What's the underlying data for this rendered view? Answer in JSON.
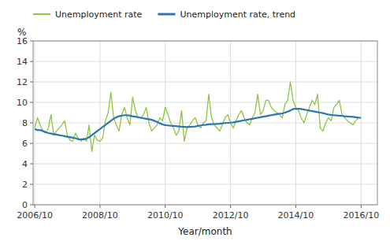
{
  "chart_data": {
    "type": "line",
    "xlabel": "Year/month",
    "ylabel": "%",
    "xlim": [
      2006.7,
      2017.25
    ],
    "xticks": [
      {
        "value": 2006.75,
        "label": "2006/10"
      },
      {
        "value": 2008.75,
        "label": "2008/10"
      },
      {
        "value": 2010.75,
        "label": "2010/10"
      },
      {
        "value": 2012.75,
        "label": "2012/10"
      },
      {
        "value": 2014.75,
        "label": "2014/10"
      },
      {
        "value": 2016.75,
        "label": "2016/10"
      }
    ],
    "ylim": [
      0,
      16
    ],
    "yticks": [
      0,
      2,
      4,
      6,
      8,
      10,
      12,
      14,
      16
    ],
    "grid": true,
    "legend": "top",
    "x": [
      2006.75,
      2006.8333333333333,
      2006.9166666666667,
      2007,
      2007.0833333333333,
      2007.1666666666667,
      2007.25,
      2007.3333333333333,
      2007.4166666666667,
      2007.5,
      2007.5833333333333,
      2007.6666666666667,
      2007.75,
      2007.8333333333333,
      2007.9166666666667,
      2008,
      2008.0833333333333,
      2008.1666666666667,
      2008.25,
      2008.3333333333333,
      2008.4166666666667,
      2008.5,
      2008.5833333333333,
      2008.6666666666667,
      2008.75,
      2008.8333333333333,
      2008.9166666666667,
      2009,
      2009.0833333333333,
      2009.1666666666667,
      2009.25,
      2009.3333333333333,
      2009.4166666666667,
      2009.5,
      2009.5833333333333,
      2009.6666666666667,
      2009.75,
      2009.8333333333333,
      2009.9166666666667,
      2010,
      2010.0833333333333,
      2010.1666666666667,
      2010.25,
      2010.3333333333333,
      2010.4166666666667,
      2010.5,
      2010.5833333333333,
      2010.6666666666667,
      2010.75,
      2010.8333333333333,
      2010.9166666666667,
      2011,
      2011.0833333333333,
      2011.1666666666667,
      2011.25,
      2011.3333333333333,
      2011.4166666666667,
      2011.5,
      2011.5833333333333,
      2011.6666666666667,
      2011.75,
      2011.8333333333333,
      2011.9166666666667,
      2012,
      2012.0833333333333,
      2012.1666666666667,
      2012.25,
      2012.3333333333333,
      2012.4166666666667,
      2012.5,
      2012.5833333333333,
      2012.6666666666667,
      2012.75,
      2012.8333333333333,
      2012.9166666666667,
      2013,
      2013.0833333333333,
      2013.1666666666667,
      2013.25,
      2013.3333333333333,
      2013.4166666666667,
      2013.5,
      2013.5833333333333,
      2013.6666666666667,
      2013.75,
      2013.8333333333333,
      2013.9166666666667,
      2014,
      2014.0833333333333,
      2014.1666666666667,
      2014.25,
      2014.3333333333333,
      2014.4166666666667,
      2014.5,
      2014.5833333333333,
      2014.6666666666667,
      2014.75,
      2014.8333333333333,
      2014.9166666666667,
      2015,
      2015.0833333333333,
      2015.1666666666667,
      2015.25,
      2015.3333333333333,
      2015.4166666666667,
      2015.5,
      2015.5833333333333,
      2015.6666666666667,
      2015.75,
      2015.8333333333333,
      2015.9166666666667,
      2016,
      2016.0833333333333,
      2016.1666666666667,
      2016.25,
      2016.3333333333333,
      2016.4166666666667,
      2016.5,
      2016.5833333333333,
      2016.6666666666667,
      2016.75
    ],
    "series": [
      {
        "name": "Unemployment rate",
        "color": "#8dc63f",
        "values": [
          7.5,
          8.5,
          7.8,
          7.2,
          7.0,
          7.5,
          8.8,
          6.8,
          7.2,
          7.5,
          7.8,
          8.2,
          6.8,
          6.3,
          6.2,
          7.0,
          6.5,
          6.2,
          6.5,
          6.2,
          7.8,
          5.2,
          6.8,
          6.3,
          6.2,
          6.5,
          8.2,
          9.0,
          11.0,
          8.5,
          7.8,
          7.2,
          8.8,
          9.5,
          8.5,
          7.8,
          10.5,
          9.2,
          8.5,
          8.5,
          8.8,
          9.5,
          8.0,
          7.2,
          7.5,
          7.8,
          8.5,
          8.2,
          9.5,
          8.8,
          8.0,
          7.5,
          6.8,
          7.2,
          9.2,
          6.2,
          7.5,
          7.8,
          8.2,
          8.5,
          7.8,
          7.5,
          8.0,
          8.2,
          10.8,
          8.5,
          7.8,
          7.5,
          7.2,
          7.8,
          8.5,
          8.8,
          8.0,
          7.5,
          8.2,
          8.8,
          9.2,
          8.5,
          8.0,
          7.8,
          8.5,
          9.0,
          10.8,
          8.8,
          9.2,
          10.2,
          10.2,
          9.5,
          9.2,
          9.0,
          8.8,
          8.5,
          9.8,
          10.2,
          12.0,
          10.2,
          9.5,
          9.2,
          8.5,
          8.0,
          8.8,
          9.5,
          10.2,
          9.8,
          10.8,
          7.5,
          7.2,
          8.0,
          8.5,
          8.2,
          9.5,
          9.8,
          10.2,
          8.8,
          8.5,
          8.2,
          8.0,
          7.8,
          8.2,
          8.5,
          8.5
        ]
      },
      {
        "name": "Unemployment rate, trend",
        "color": "#2e75b6",
        "values": [
          7.4,
          7.3,
          7.3,
          7.2,
          7.1,
          7.0,
          6.95,
          6.9,
          6.85,
          6.8,
          6.75,
          6.7,
          6.65,
          6.6,
          6.55,
          6.5,
          6.4,
          6.4,
          6.4,
          6.45,
          6.6,
          6.8,
          7.0,
          7.2,
          7.4,
          7.6,
          7.8,
          8.0,
          8.2,
          8.4,
          8.55,
          8.65,
          8.7,
          8.75,
          8.75,
          8.7,
          8.65,
          8.6,
          8.55,
          8.5,
          8.45,
          8.4,
          8.35,
          8.3,
          8.2,
          8.1,
          7.95,
          7.85,
          7.78,
          7.75,
          7.72,
          7.7,
          7.68,
          7.65,
          7.62,
          7.6,
          7.58,
          7.6,
          7.62,
          7.65,
          7.7,
          7.75,
          7.8,
          7.82,
          7.85,
          7.87,
          7.88,
          7.9,
          7.92,
          7.95,
          7.98,
          8.0,
          8.02,
          8.05,
          8.1,
          8.15,
          8.2,
          8.25,
          8.3,
          8.35,
          8.4,
          8.45,
          8.5,
          8.55,
          8.6,
          8.65,
          8.7,
          8.75,
          8.8,
          8.85,
          8.9,
          8.92,
          9.0,
          9.1,
          9.2,
          9.35,
          9.38,
          9.38,
          9.35,
          9.3,
          9.25,
          9.2,
          9.15,
          9.1,
          9.05,
          9.0,
          8.95,
          8.88,
          8.82,
          8.78,
          8.75,
          8.72,
          8.7,
          8.68,
          8.65,
          8.62,
          8.6,
          8.58,
          8.55,
          8.52,
          8.5
        ]
      }
    ]
  }
}
